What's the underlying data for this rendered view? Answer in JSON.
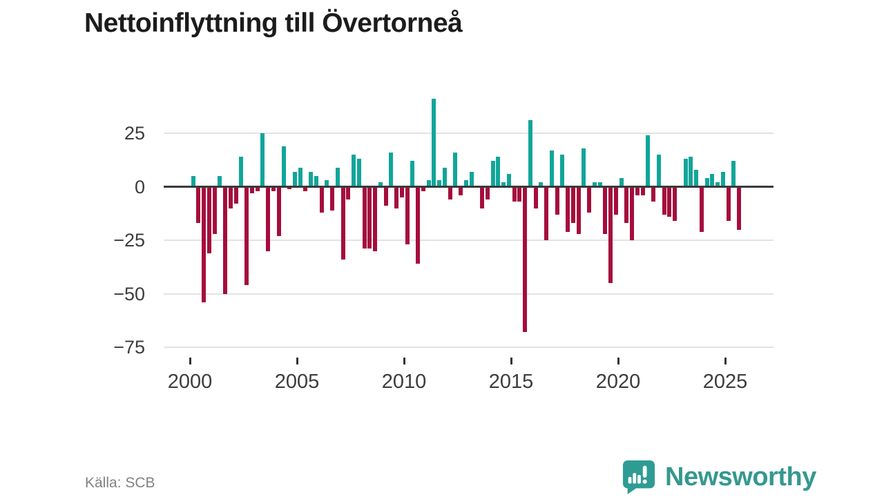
{
  "title": "Nettoinflyttning till Övertorneå",
  "source": "Källa: SCB",
  "logo": {
    "text": "Newsworthy"
  },
  "chart_data": {
    "type": "bar",
    "title": "Nettoinflyttning till Övertorneå",
    "frequency": "quarterly",
    "start": "2000-Q1",
    "end": "2025-Q3",
    "values": [
      5,
      -17,
      -54,
      -31,
      -22,
      5,
      -50,
      -10,
      -8,
      14,
      -46,
      -3,
      -2,
      25,
      -30,
      -2,
      -23,
      19,
      -1,
      7,
      9,
      -2,
      7,
      5,
      -12,
      3,
      -11,
      9,
      -34,
      -6,
      15,
      13,
      -29,
      -29,
      -30,
      2,
      -9,
      16,
      -10,
      -5,
      -27,
      12,
      -36,
      -2,
      3,
      41,
      3,
      9,
      -6,
      16,
      -4,
      3,
      7,
      0,
      -10,
      -6,
      12,
      14,
      2,
      6,
      -7,
      -7,
      -68,
      31,
      -10,
      2,
      -25,
      17,
      -13,
      15,
      -21,
      -17,
      -22,
      18,
      -12,
      2,
      2,
      -22,
      -45,
      -13,
      4,
      -17,
      -25,
      -4,
      -4,
      24,
      -7,
      15,
      -13,
      -14,
      -16,
      0,
      13,
      14,
      8,
      -21,
      4,
      6,
      2,
      7,
      -16,
      12,
      -20
    ],
    "yticks": [
      {
        "v": 25,
        "label": "25"
      },
      {
        "v": 0,
        "label": "0"
      },
      {
        "v": -25,
        "label": "−25"
      },
      {
        "v": -50,
        "label": "−50"
      },
      {
        "v": -75,
        "label": "−75"
      }
    ],
    "xticks": [
      {
        "year": 2000,
        "label": "2000"
      },
      {
        "year": 2005,
        "label": "2005"
      },
      {
        "year": 2010,
        "label": "2010"
      },
      {
        "year": 2015,
        "label": "2015"
      },
      {
        "year": 2020,
        "label": "2020"
      },
      {
        "year": 2025,
        "label": "2025"
      }
    ],
    "ylim": [
      -79,
      52
    ],
    "grid": true,
    "legend": false,
    "positive_color": "#11a59a",
    "negative_color": "#a50d3d",
    "zero_line_color": "#3a3a3a",
    "grid_color": "#e3e3e3"
  }
}
